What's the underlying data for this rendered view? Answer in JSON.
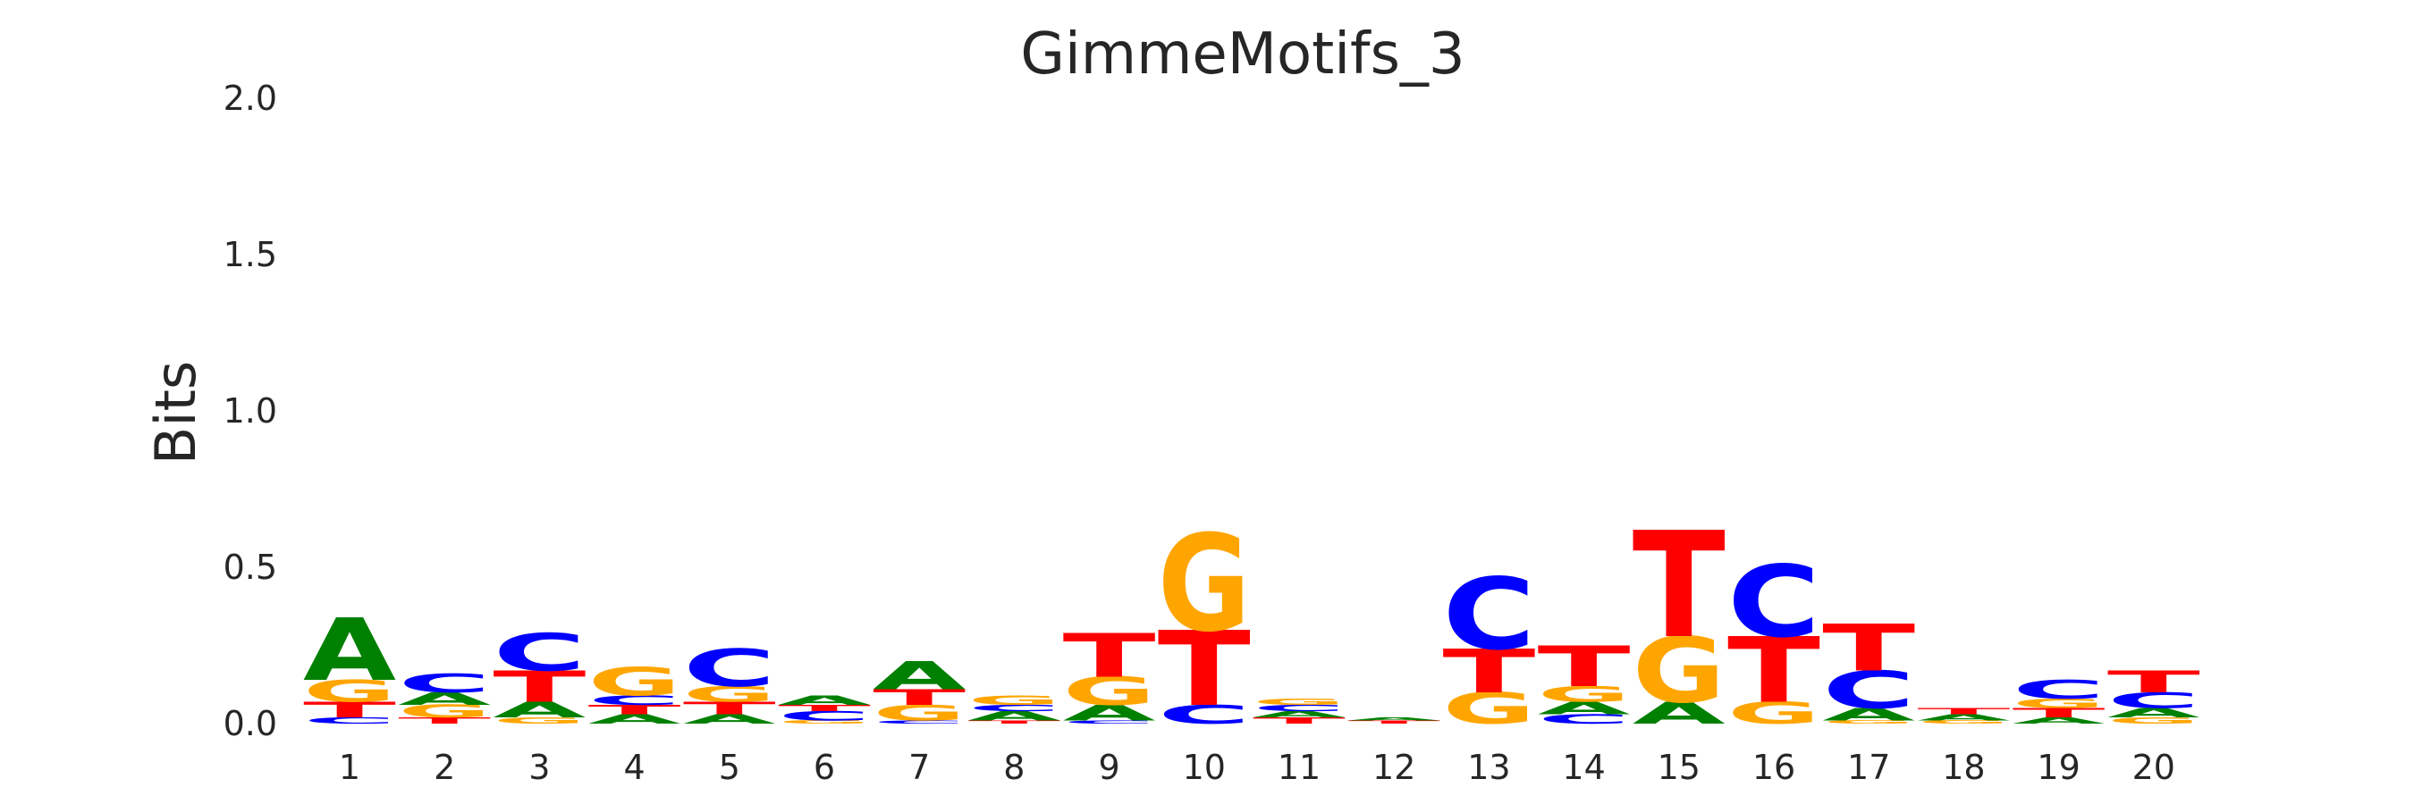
{
  "chart_data": {
    "type": "sequence-logo",
    "title": "GimmeMotifs_3",
    "ylabel": "Bits",
    "xlabel": "",
    "ylim": [
      0,
      2.0
    ],
    "yticks": [
      "0.0",
      "0.5",
      "1.0",
      "1.5",
      "2.0"
    ],
    "grid": false,
    "colors": {
      "A": "#008000",
      "C": "#0000ff",
      "G": "#ffa500",
      "T": "#ff0000"
    },
    "positions": [
      {
        "label": "1",
        "stack": [
          [
            "C",
            0.02
          ],
          [
            "T",
            0.05
          ],
          [
            "G",
            0.07
          ],
          [
            "A",
            0.2
          ]
        ]
      },
      {
        "label": "2",
        "stack": [
          [
            "T",
            0.02
          ],
          [
            "G",
            0.04
          ],
          [
            "A",
            0.04
          ],
          [
            "C",
            0.06
          ]
        ]
      },
      {
        "label": "3",
        "stack": [
          [
            "G",
            0.02
          ],
          [
            "A",
            0.05
          ],
          [
            "T",
            0.1
          ],
          [
            "C",
            0.12
          ]
        ]
      },
      {
        "label": "4",
        "stack": [
          [
            "A",
            0.03
          ],
          [
            "T",
            0.03
          ],
          [
            "C",
            0.03
          ],
          [
            "G",
            0.09
          ]
        ]
      },
      {
        "label": "5",
        "stack": [
          [
            "A",
            0.03
          ],
          [
            "T",
            0.04
          ],
          [
            "G",
            0.05
          ],
          [
            "C",
            0.12
          ]
        ]
      },
      {
        "label": "6",
        "stack": [
          [
            "G",
            0.01
          ],
          [
            "C",
            0.03
          ],
          [
            "T",
            0.02
          ],
          [
            "A",
            0.03
          ]
        ]
      },
      {
        "label": "7",
        "stack": [
          [
            "C",
            0.01
          ],
          [
            "G",
            0.05
          ],
          [
            "T",
            0.05
          ],
          [
            "A",
            0.09
          ]
        ]
      },
      {
        "label": "8",
        "stack": [
          [
            "T",
            0.01
          ],
          [
            "A",
            0.03
          ],
          [
            "C",
            0.02
          ],
          [
            "G",
            0.03
          ]
        ]
      },
      {
        "label": "9",
        "stack": [
          [
            "C",
            0.01
          ],
          [
            "A",
            0.05
          ],
          [
            "G",
            0.09
          ],
          [
            "T",
            0.14
          ]
        ]
      },
      {
        "label": "10",
        "stack": [
          [
            "C",
            0.06
          ],
          [
            "T",
            0.24
          ],
          [
            "G",
            0.31
          ]
        ]
      },
      {
        "label": "11",
        "stack": [
          [
            "T",
            0.02
          ],
          [
            "A",
            0.02
          ],
          [
            "C",
            0.02
          ],
          [
            "G",
            0.02
          ]
        ]
      },
      {
        "label": "12",
        "stack": [
          [
            "T",
            0.01
          ],
          [
            "A",
            0.01
          ]
        ]
      },
      {
        "label": "13",
        "stack": [
          [
            "G",
            0.1
          ],
          [
            "T",
            0.14
          ],
          [
            "C",
            0.23
          ]
        ]
      },
      {
        "label": "14",
        "stack": [
          [
            "C",
            0.03
          ],
          [
            "A",
            0.04
          ],
          [
            "G",
            0.05
          ],
          [
            "T",
            0.13
          ]
        ]
      },
      {
        "label": "15",
        "stack": [
          [
            "A",
            0.07
          ],
          [
            "G",
            0.21
          ],
          [
            "T",
            0.34
          ]
        ]
      },
      {
        "label": "16",
        "stack": [
          [
            "G",
            0.07
          ],
          [
            "T",
            0.21
          ],
          [
            "C",
            0.23
          ]
        ]
      },
      {
        "label": "17",
        "stack": [
          [
            "G",
            0.01
          ],
          [
            "A",
            0.04
          ],
          [
            "C",
            0.12
          ],
          [
            "T",
            0.15
          ]
        ]
      },
      {
        "label": "18",
        "stack": [
          [
            "G",
            0.01
          ],
          [
            "A",
            0.02
          ],
          [
            "T",
            0.02
          ]
        ]
      },
      {
        "label": "19",
        "stack": [
          [
            "A",
            0.02
          ],
          [
            "T",
            0.03
          ],
          [
            "G",
            0.03
          ],
          [
            "C",
            0.06
          ]
        ]
      },
      {
        "label": "20",
        "stack": [
          [
            "G",
            0.02
          ],
          [
            "A",
            0.03
          ],
          [
            "C",
            0.05
          ],
          [
            "T",
            0.07
          ]
        ]
      }
    ]
  }
}
